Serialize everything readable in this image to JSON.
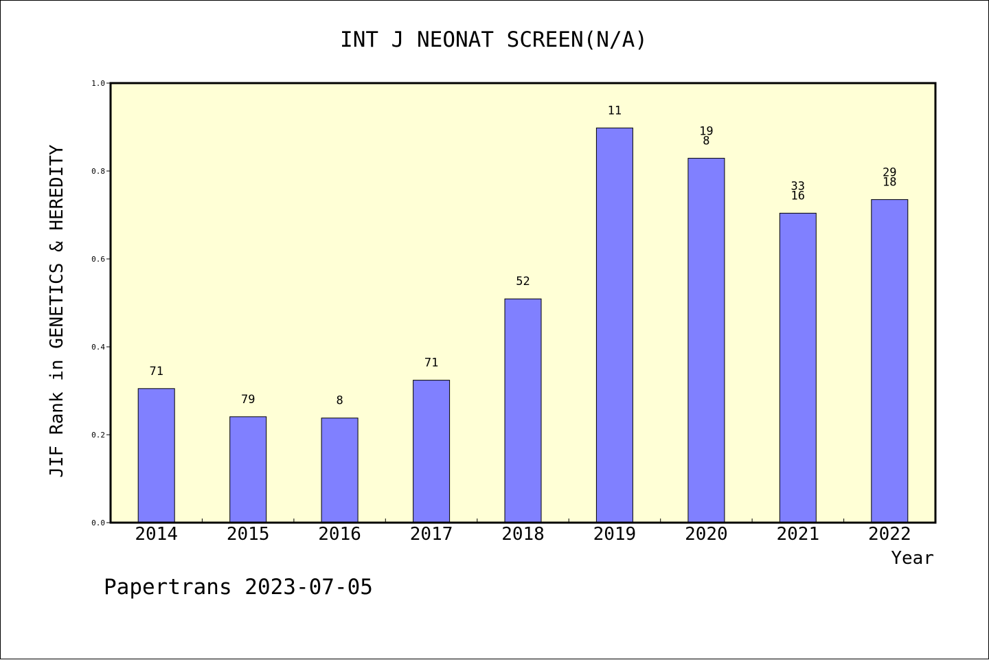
{
  "chart_data": {
    "type": "bar",
    "title": "INT J NEONAT SCREEN(N/A)",
    "xlabel": "Year",
    "ylabel": "JIF Rank in GENETICS & HEREDITY",
    "categories": [
      "2014",
      "2015",
      "2016",
      "2017",
      "2018",
      "2019",
      "2020",
      "2021",
      "2022"
    ],
    "values": [
      0.305,
      0.241,
      0.238,
      0.324,
      0.509,
      0.898,
      0.829,
      0.704,
      0.735
    ],
    "bar_labels": [
      [
        "71"
      ],
      [
        "79"
      ],
      [
        "8"
      ],
      [
        "71"
      ],
      [
        "52"
      ],
      [
        "11"
      ],
      [
        "19",
        "8"
      ],
      [
        "33",
        "16"
      ],
      [
        "29",
        "18"
      ]
    ],
    "ylim": [
      0,
      1.0
    ],
    "yticks": [
      "0.0",
      "0.2",
      "0.4",
      "0.6",
      "0.8",
      "1.0"
    ],
    "grid": false,
    "legend": "none",
    "colors": {
      "bar": "#8080ff",
      "plot_background": "#ffffd6",
      "axis": "#000000"
    }
  },
  "footer": {
    "text": "Papertrans 2023-07-05"
  }
}
